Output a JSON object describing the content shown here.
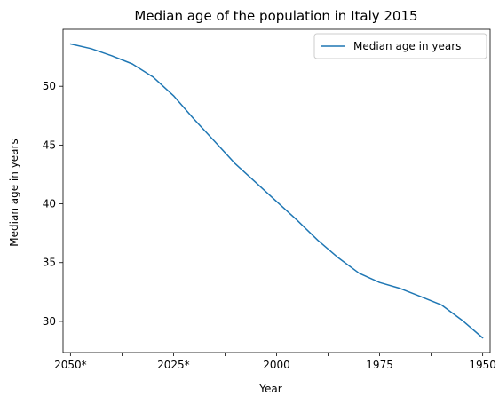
{
  "chart_data": {
    "type": "line",
    "title": "Median age of the population in Italy 2015",
    "xlabel": "Year",
    "ylabel": "Median age in years",
    "x_direction": "descending",
    "x_tick_labels": [
      {
        "x": 2050,
        "label": "2050*"
      },
      {
        "x": 2037.5,
        "label": ""
      },
      {
        "x": 2025,
        "label": "2025*"
      },
      {
        "x": 2012.5,
        "label": ""
      },
      {
        "x": 2000,
        "label": "2000"
      },
      {
        "x": 1987.5,
        "label": ""
      },
      {
        "x": 1975,
        "label": "1975"
      },
      {
        "x": 1962.5,
        "label": ""
      },
      {
        "x": 1950,
        "label": "1950"
      }
    ],
    "y_ticks": [
      30,
      35,
      40,
      45,
      50
    ],
    "xlim": [
      2051.8,
      1948.2
    ],
    "ylim": [
      27.35,
      54.85
    ],
    "grid": false,
    "legend_position": "top-right",
    "series": [
      {
        "name": "Median age in years",
        "color": "#1f77b4",
        "x": [
          2050,
          2045,
          2040,
          2035,
          2030,
          2025,
          2020,
          2015,
          2010,
          2005,
          2000,
          1995,
          1990,
          1985,
          1980,
          1975,
          1970,
          1965,
          1960,
          1955,
          1950
        ],
        "y": [
          53.6,
          53.2,
          52.6,
          51.9,
          50.8,
          49.2,
          47.2,
          45.3,
          43.4,
          41.8,
          40.2,
          38.6,
          36.9,
          35.4,
          34.1,
          33.3,
          32.8,
          32.1,
          31.4,
          30.1,
          28.6
        ]
      }
    ]
  }
}
